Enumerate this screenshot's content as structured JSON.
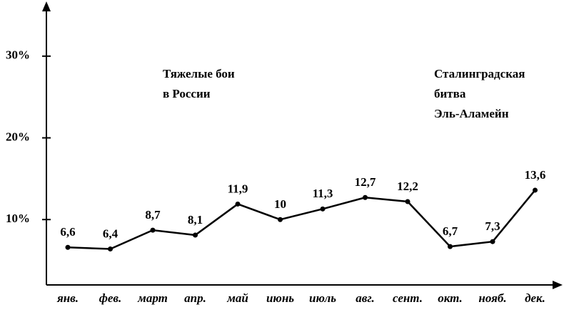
{
  "chart_data": {
    "type": "line",
    "categories": [
      "янв.",
      "фев.",
      "март",
      "апр.",
      "май",
      "июнь",
      "июль",
      "авг.",
      "сент.",
      "окт.",
      "нояб.",
      "дек."
    ],
    "values": [
      6.6,
      6.4,
      8.7,
      8.1,
      11.9,
      10,
      11.3,
      12.7,
      12.2,
      6.7,
      7.3,
      13.6
    ],
    "value_labels": [
      "6,6",
      "6,4",
      "8,7",
      "8,1",
      "11,9",
      "10",
      "11,3",
      "12,7",
      "12,2",
      "6,7",
      "7,3",
      "13,6"
    ],
    "color": "#000000",
    "ylim": [
      2,
      36
    ],
    "yticks": [
      {
        "value": 10,
        "label": "10%"
      },
      {
        "value": 20,
        "label": "20%"
      },
      {
        "value": 30,
        "label": "30%"
      }
    ],
    "annotations": [
      [
        "Тяжелые бои",
        "в России"
      ],
      [
        "Сталинградская",
        "битва",
        "Эль-Аламейн"
      ]
    ]
  }
}
